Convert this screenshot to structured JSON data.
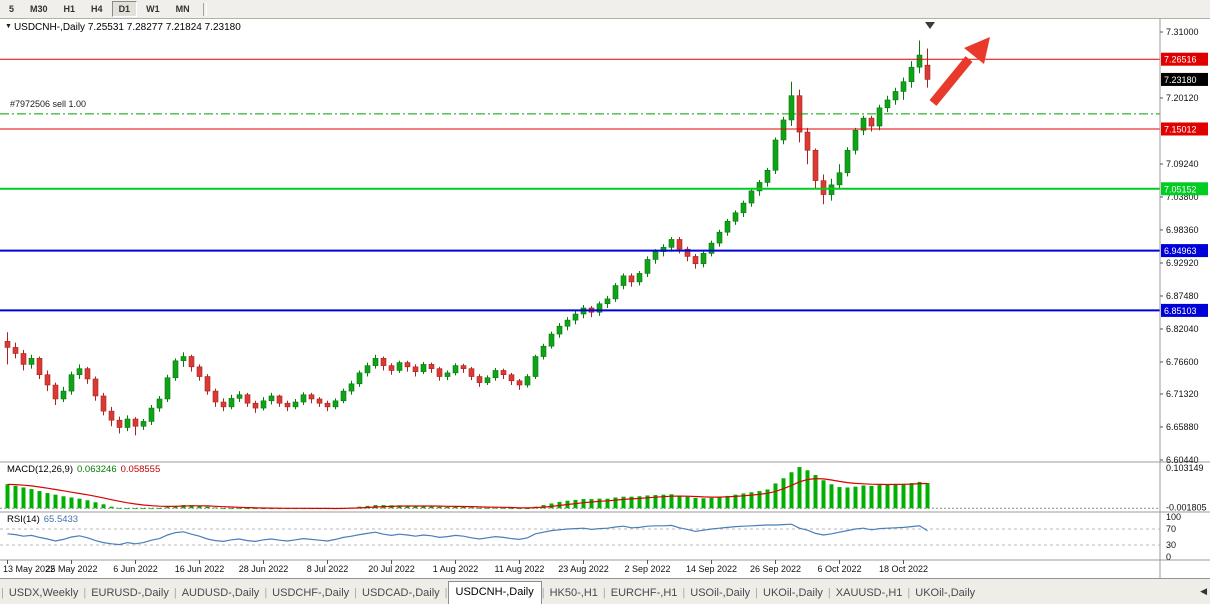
{
  "toolbar": {
    "periods": [
      "5",
      "M30",
      "H1",
      "H4",
      "D1",
      "W1",
      "MN"
    ],
    "active": "D1"
  },
  "chart": {
    "title_symbol": "USDCNH-,Daily",
    "title_ohlc": "7.25531 7.28277 7.21824 7.23180",
    "position_label": "#7972506 sell 1.00"
  },
  "icons": {
    "title_marker": "▼",
    "shift_marker": "▼",
    "tab_scroll_left": "◀"
  },
  "tabs": {
    "items": [
      "USDX,Weekly",
      "EURUSD-,Daily",
      "AUDUSD-,Daily",
      "USDCHF-,Daily",
      "USDCAD-,Daily",
      "USDCNH-,Daily",
      "HK50-,H1",
      "EURCHF-,H1",
      "USOil-,Daily",
      "UKOil-,Daily",
      "XAUUSD-,H1",
      "UKOil-,Daily"
    ],
    "active_index": 5
  },
  "chart_data": {
    "type": "candlestick",
    "symbol": "USDCNH-,Daily",
    "ohlc_current": {
      "open": 7.25531,
      "high": 7.28277,
      "low": 7.21824,
      "close": 7.2318
    },
    "colors": {
      "up": "#0fa317",
      "up_dark": "#067a0e",
      "down": "#d93a35",
      "down_dark": "#a8231f"
    },
    "y_axis": {
      "min": 6.6044,
      "max": 7.31,
      "labels": [
        "7.31000",
        "7.20120",
        "7.09240",
        "7.03800",
        "6.98360",
        "6.92920",
        "6.87480",
        "6.82040",
        "6.76600",
        "6.71320",
        "6.65880",
        "6.60440"
      ]
    },
    "x_axis": {
      "tick_labels": [
        "13 May 2022",
        "25 May 2022",
        "6 Jun 2022",
        "16 Jun 2022",
        "28 Jun 2022",
        "8 Jul 2022",
        "20 Jul 2022",
        "1 Aug 2022",
        "11 Aug 2022",
        "23 Aug 2022",
        "2 Sep 2022",
        "14 Sep 2022",
        "26 Sep 2022",
        "6 Oct 2022",
        "18 Oct 2022"
      ],
      "tick_indices": [
        0,
        8,
        16,
        24,
        32,
        40,
        48,
        56,
        64,
        72,
        80,
        88,
        96,
        104,
        112
      ]
    },
    "hlines": [
      {
        "price": 7.26516,
        "label": "7.26516",
        "color": "#e00000",
        "width": 1,
        "style": "solid"
      },
      {
        "price": 7.15012,
        "label": "7.15012",
        "color": "#e00000",
        "width": 1,
        "style": "solid"
      },
      {
        "price": 7.05152,
        "label": "7.05152",
        "color": "#00cc22",
        "width": 2,
        "style": "solid"
      },
      {
        "price": 6.94963,
        "label": "6.94963",
        "color": "#0000d8",
        "width": 2,
        "style": "solid"
      },
      {
        "price": 6.85103,
        "label": "6.85103",
        "color": "#0000d8",
        "width": 2,
        "style": "solid"
      }
    ],
    "position_line": {
      "price": 7.175,
      "color": "#00a000",
      "style": "dashdot"
    },
    "price_badge": {
      "price": 7.2318,
      "label": "7.23180",
      "color": "#000000"
    },
    "annotations": {
      "arrow_color": "#e8392a"
    },
    "candles": [
      [
        6.8,
        6.815,
        6.762,
        6.79
      ],
      [
        6.79,
        6.798,
        6.772,
        6.78
      ],
      [
        6.78,
        6.786,
        6.752,
        6.762
      ],
      [
        6.762,
        6.778,
        6.755,
        6.772
      ],
      [
        6.772,
        6.775,
        6.738,
        6.745
      ],
      [
        6.745,
        6.752,
        6.718,
        6.728
      ],
      [
        6.728,
        6.732,
        6.695,
        6.705
      ],
      [
        6.705,
        6.725,
        6.7,
        6.718
      ],
      [
        6.718,
        6.75,
        6.712,
        6.745
      ],
      [
        6.745,
        6.762,
        6.738,
        6.755
      ],
      [
        6.755,
        6.758,
        6.73,
        6.738
      ],
      [
        6.738,
        6.742,
        6.702,
        6.71
      ],
      [
        6.71,
        6.715,
        6.678,
        6.685
      ],
      [
        6.685,
        6.692,
        6.66,
        6.67
      ],
      [
        6.67,
        6.676,
        6.648,
        6.658
      ],
      [
        6.658,
        6.678,
        6.652,
        6.672
      ],
      [
        6.672,
        6.675,
        6.645,
        6.66
      ],
      [
        6.66,
        6.672,
        6.654,
        6.668
      ],
      [
        6.668,
        6.695,
        6.662,
        6.69
      ],
      [
        6.69,
        6.71,
        6.684,
        6.705
      ],
      [
        6.705,
        6.745,
        6.7,
        6.74
      ],
      [
        6.74,
        6.772,
        6.735,
        6.768
      ],
      [
        6.768,
        6.782,
        6.758,
        6.775
      ],
      [
        6.775,
        6.778,
        6.75,
        6.758
      ],
      [
        6.758,
        6.762,
        6.735,
        6.742
      ],
      [
        6.742,
        6.746,
        6.712,
        6.718
      ],
      [
        6.718,
        6.722,
        6.692,
        6.7
      ],
      [
        6.7,
        6.706,
        6.685,
        6.692
      ],
      [
        6.692,
        6.712,
        6.688,
        6.706
      ],
      [
        6.706,
        6.718,
        6.7,
        6.712
      ],
      [
        6.712,
        6.715,
        6.692,
        6.698
      ],
      [
        6.698,
        6.702,
        6.682,
        6.69
      ],
      [
        6.69,
        6.708,
        6.686,
        6.702
      ],
      [
        6.702,
        6.715,
        6.696,
        6.71
      ],
      [
        6.71,
        6.712,
        6.692,
        6.698
      ],
      [
        6.698,
        6.702,
        6.685,
        6.692
      ],
      [
        6.692,
        6.705,
        6.688,
        6.7
      ],
      [
        6.7,
        6.716,
        6.695,
        6.712
      ],
      [
        6.712,
        6.715,
        6.698,
        6.705
      ],
      [
        6.705,
        6.708,
        6.692,
        6.698
      ],
      [
        6.698,
        6.702,
        6.685,
        6.692
      ],
      [
        6.692,
        6.706,
        6.688,
        6.702
      ],
      [
        6.702,
        6.722,
        6.698,
        6.718
      ],
      [
        6.718,
        6.735,
        6.712,
        6.73
      ],
      [
        6.73,
        6.752,
        6.725,
        6.748
      ],
      [
        6.748,
        6.765,
        6.742,
        6.76
      ],
      [
        6.76,
        6.778,
        6.755,
        6.772
      ],
      [
        6.772,
        6.775,
        6.752,
        6.76
      ],
      [
        6.76,
        6.764,
        6.745,
        6.752
      ],
      [
        6.752,
        6.768,
        6.748,
        6.765
      ],
      [
        6.765,
        6.768,
        6.75,
        6.758
      ],
      [
        6.758,
        6.762,
        6.742,
        6.75
      ],
      [
        6.75,
        6.766,
        6.746,
        6.762
      ],
      [
        6.762,
        6.765,
        6.748,
        6.755
      ],
      [
        6.755,
        6.758,
        6.735,
        6.742
      ],
      [
        6.742,
        6.752,
        6.736,
        6.748
      ],
      [
        6.748,
        6.764,
        6.744,
        6.76
      ],
      [
        6.76,
        6.763,
        6.748,
        6.755
      ],
      [
        6.755,
        6.758,
        6.736,
        6.742
      ],
      [
        6.742,
        6.746,
        6.725,
        6.732
      ],
      [
        6.732,
        6.744,
        6.728,
        6.74
      ],
      [
        6.74,
        6.756,
        6.735,
        6.752
      ],
      [
        6.752,
        6.755,
        6.738,
        6.745
      ],
      [
        6.745,
        6.748,
        6.728,
        6.735
      ],
      [
        6.735,
        6.738,
        6.72,
        6.728
      ],
      [
        6.728,
        6.746,
        6.724,
        6.742
      ],
      [
        6.742,
        6.778,
        6.738,
        6.775
      ],
      [
        6.775,
        6.796,
        6.77,
        6.792
      ],
      [
        6.792,
        6.816,
        6.788,
        6.812
      ],
      [
        6.812,
        6.83,
        6.806,
        6.825
      ],
      [
        6.825,
        6.84,
        6.818,
        6.835
      ],
      [
        6.835,
        6.85,
        6.828,
        6.845
      ],
      [
        6.845,
        6.86,
        6.838,
        6.855
      ],
      [
        6.855,
        6.858,
        6.84,
        6.848
      ],
      [
        6.848,
        6.866,
        6.842,
        6.862
      ],
      [
        6.862,
        6.875,
        6.855,
        6.87
      ],
      [
        6.87,
        6.896,
        6.865,
        6.892
      ],
      [
        6.892,
        6.912,
        6.886,
        6.908
      ],
      [
        6.908,
        6.912,
        6.89,
        6.898
      ],
      [
        6.898,
        6.916,
        6.892,
        6.912
      ],
      [
        6.912,
        6.94,
        6.906,
        6.935
      ],
      [
        6.935,
        6.952,
        6.928,
        6.948
      ],
      [
        6.948,
        6.96,
        6.94,
        6.955
      ],
      [
        6.955,
        6.972,
        6.948,
        6.968
      ],
      [
        6.968,
        6.972,
        6.945,
        6.952
      ],
      [
        6.952,
        6.956,
        6.932,
        6.94
      ],
      [
        6.94,
        6.944,
        6.92,
        6.928
      ],
      [
        6.928,
        6.948,
        6.922,
        6.945
      ],
      [
        6.945,
        6.966,
        6.94,
        6.962
      ],
      [
        6.962,
        6.984,
        6.956,
        6.98
      ],
      [
        6.98,
        7.002,
        6.974,
        6.998
      ],
      [
        6.998,
        7.016,
        6.992,
        7.012
      ],
      [
        7.012,
        7.032,
        7.005,
        7.028
      ],
      [
        7.028,
        7.052,
        7.022,
        7.048
      ],
      [
        7.048,
        7.066,
        7.04,
        7.062
      ],
      [
        7.062,
        7.086,
        7.055,
        7.082
      ],
      [
        7.082,
        7.136,
        7.076,
        7.132
      ],
      [
        7.132,
        7.17,
        7.125,
        7.165
      ],
      [
        7.165,
        7.228,
        7.155,
        7.205
      ],
      [
        7.205,
        7.215,
        7.128,
        7.145
      ],
      [
        7.145,
        7.152,
        7.092,
        7.115
      ],
      [
        7.115,
        7.118,
        7.052,
        7.065
      ],
      [
        7.065,
        7.075,
        7.026,
        7.042
      ],
      [
        7.042,
        7.068,
        7.032,
        7.058
      ],
      [
        7.058,
        7.092,
        7.052,
        7.078
      ],
      [
        7.078,
        7.12,
        7.072,
        7.115
      ],
      [
        7.115,
        7.152,
        7.108,
        7.148
      ],
      [
        7.148,
        7.172,
        7.14,
        7.168
      ],
      [
        7.168,
        7.172,
        7.146,
        7.155
      ],
      [
        7.155,
        7.19,
        7.148,
        7.185
      ],
      [
        7.185,
        7.205,
        7.178,
        7.198
      ],
      [
        7.198,
        7.218,
        7.19,
        7.212
      ],
      [
        7.212,
        7.235,
        7.198,
        7.228
      ],
      [
        7.228,
        7.262,
        7.218,
        7.252
      ],
      [
        7.252,
        7.296,
        7.242,
        7.272
      ],
      [
        7.25531,
        7.28277,
        7.21824,
        7.2318
      ]
    ],
    "indicators": {
      "macd": {
        "label": "MACD(12,26,9)",
        "value_main": "0.063246",
        "value_signal": "0.058555",
        "scale_top": "0.103149",
        "scale_bottom": "-0.001805",
        "color_histogram": "#00b000",
        "color_signal": "#dd0000",
        "histogram": [
          0.06,
          0.056,
          0.052,
          0.048,
          0.043,
          0.038,
          0.034,
          0.03,
          0.027,
          0.024,
          0.02,
          0.015,
          0.01,
          0.004,
          0.001,
          -0.001,
          -0.0018,
          -0.0015,
          -0.0008,
          0.0005,
          0.003,
          0.006,
          0.008,
          0.008,
          0.007,
          0.004,
          0.002,
          0.0,
          -0.0005,
          -0.0008,
          -0.001,
          -0.0012,
          -0.001,
          -0.0005,
          -0.0005,
          -0.0008,
          -0.0008,
          -0.0003,
          -0.0003,
          -0.0006,
          -0.001,
          -0.0006,
          0.0005,
          0.002,
          0.004,
          0.006,
          0.008,
          0.008,
          0.0075,
          0.0075,
          0.007,
          0.006,
          0.006,
          0.0055,
          0.004,
          0.0035,
          0.004,
          0.0035,
          0.0025,
          0.001,
          0.001,
          0.0015,
          0.001,
          0.0,
          -0.001,
          0.0,
          0.004,
          0.008,
          0.012,
          0.016,
          0.019,
          0.021,
          0.023,
          0.023,
          0.024,
          0.024,
          0.027,
          0.029,
          0.029,
          0.03,
          0.032,
          0.033,
          0.034,
          0.035,
          0.032,
          0.029,
          0.026,
          0.025,
          0.026,
          0.028,
          0.031,
          0.034,
          0.037,
          0.04,
          0.043,
          0.047,
          0.062,
          0.075,
          0.09,
          0.103,
          0.095,
          0.083,
          0.07,
          0.06,
          0.053,
          0.052,
          0.054,
          0.057,
          0.056,
          0.058,
          0.059,
          0.06,
          0.061,
          0.063,
          0.066,
          0.0632
        ]
      },
      "rsi": {
        "label": "RSI(14)",
        "value": "65.5433",
        "color": "#4a7ebb",
        "levels": [
          70,
          30
        ],
        "scale_labels": [
          "100",
          "70",
          "30",
          "0"
        ],
        "values": [
          58,
          56,
          52,
          54,
          49,
          45,
          40,
          44,
          50,
          53,
          48,
          41,
          36,
          33,
          31,
          36,
          33,
          36,
          42,
          46,
          55,
          61,
          63,
          57,
          52,
          45,
          41,
          39,
          43,
          45,
          41,
          39,
          43,
          45,
          42,
          40,
          43,
          46,
          44,
          42,
          40,
          44,
          49,
          52,
          56,
          59,
          62,
          57,
          54,
          57,
          55,
          52,
          55,
          53,
          49,
          51,
          54,
          52,
          48,
          45,
          48,
          51,
          49,
          46,
          44,
          48,
          58,
          62,
          66,
          68,
          70,
          71,
          72,
          69,
          71,
          72,
          75,
          77,
          73,
          74,
          77,
          78,
          78,
          79,
          73,
          69,
          64,
          67,
          70,
          72,
          74,
          76,
          77,
          78,
          79,
          80,
          80,
          81,
          82,
          72,
          67,
          59,
          55,
          58,
          62,
          66,
          70,
          72,
          68,
          71,
          72,
          73,
          74,
          76,
          78,
          65.5
        ]
      }
    }
  }
}
